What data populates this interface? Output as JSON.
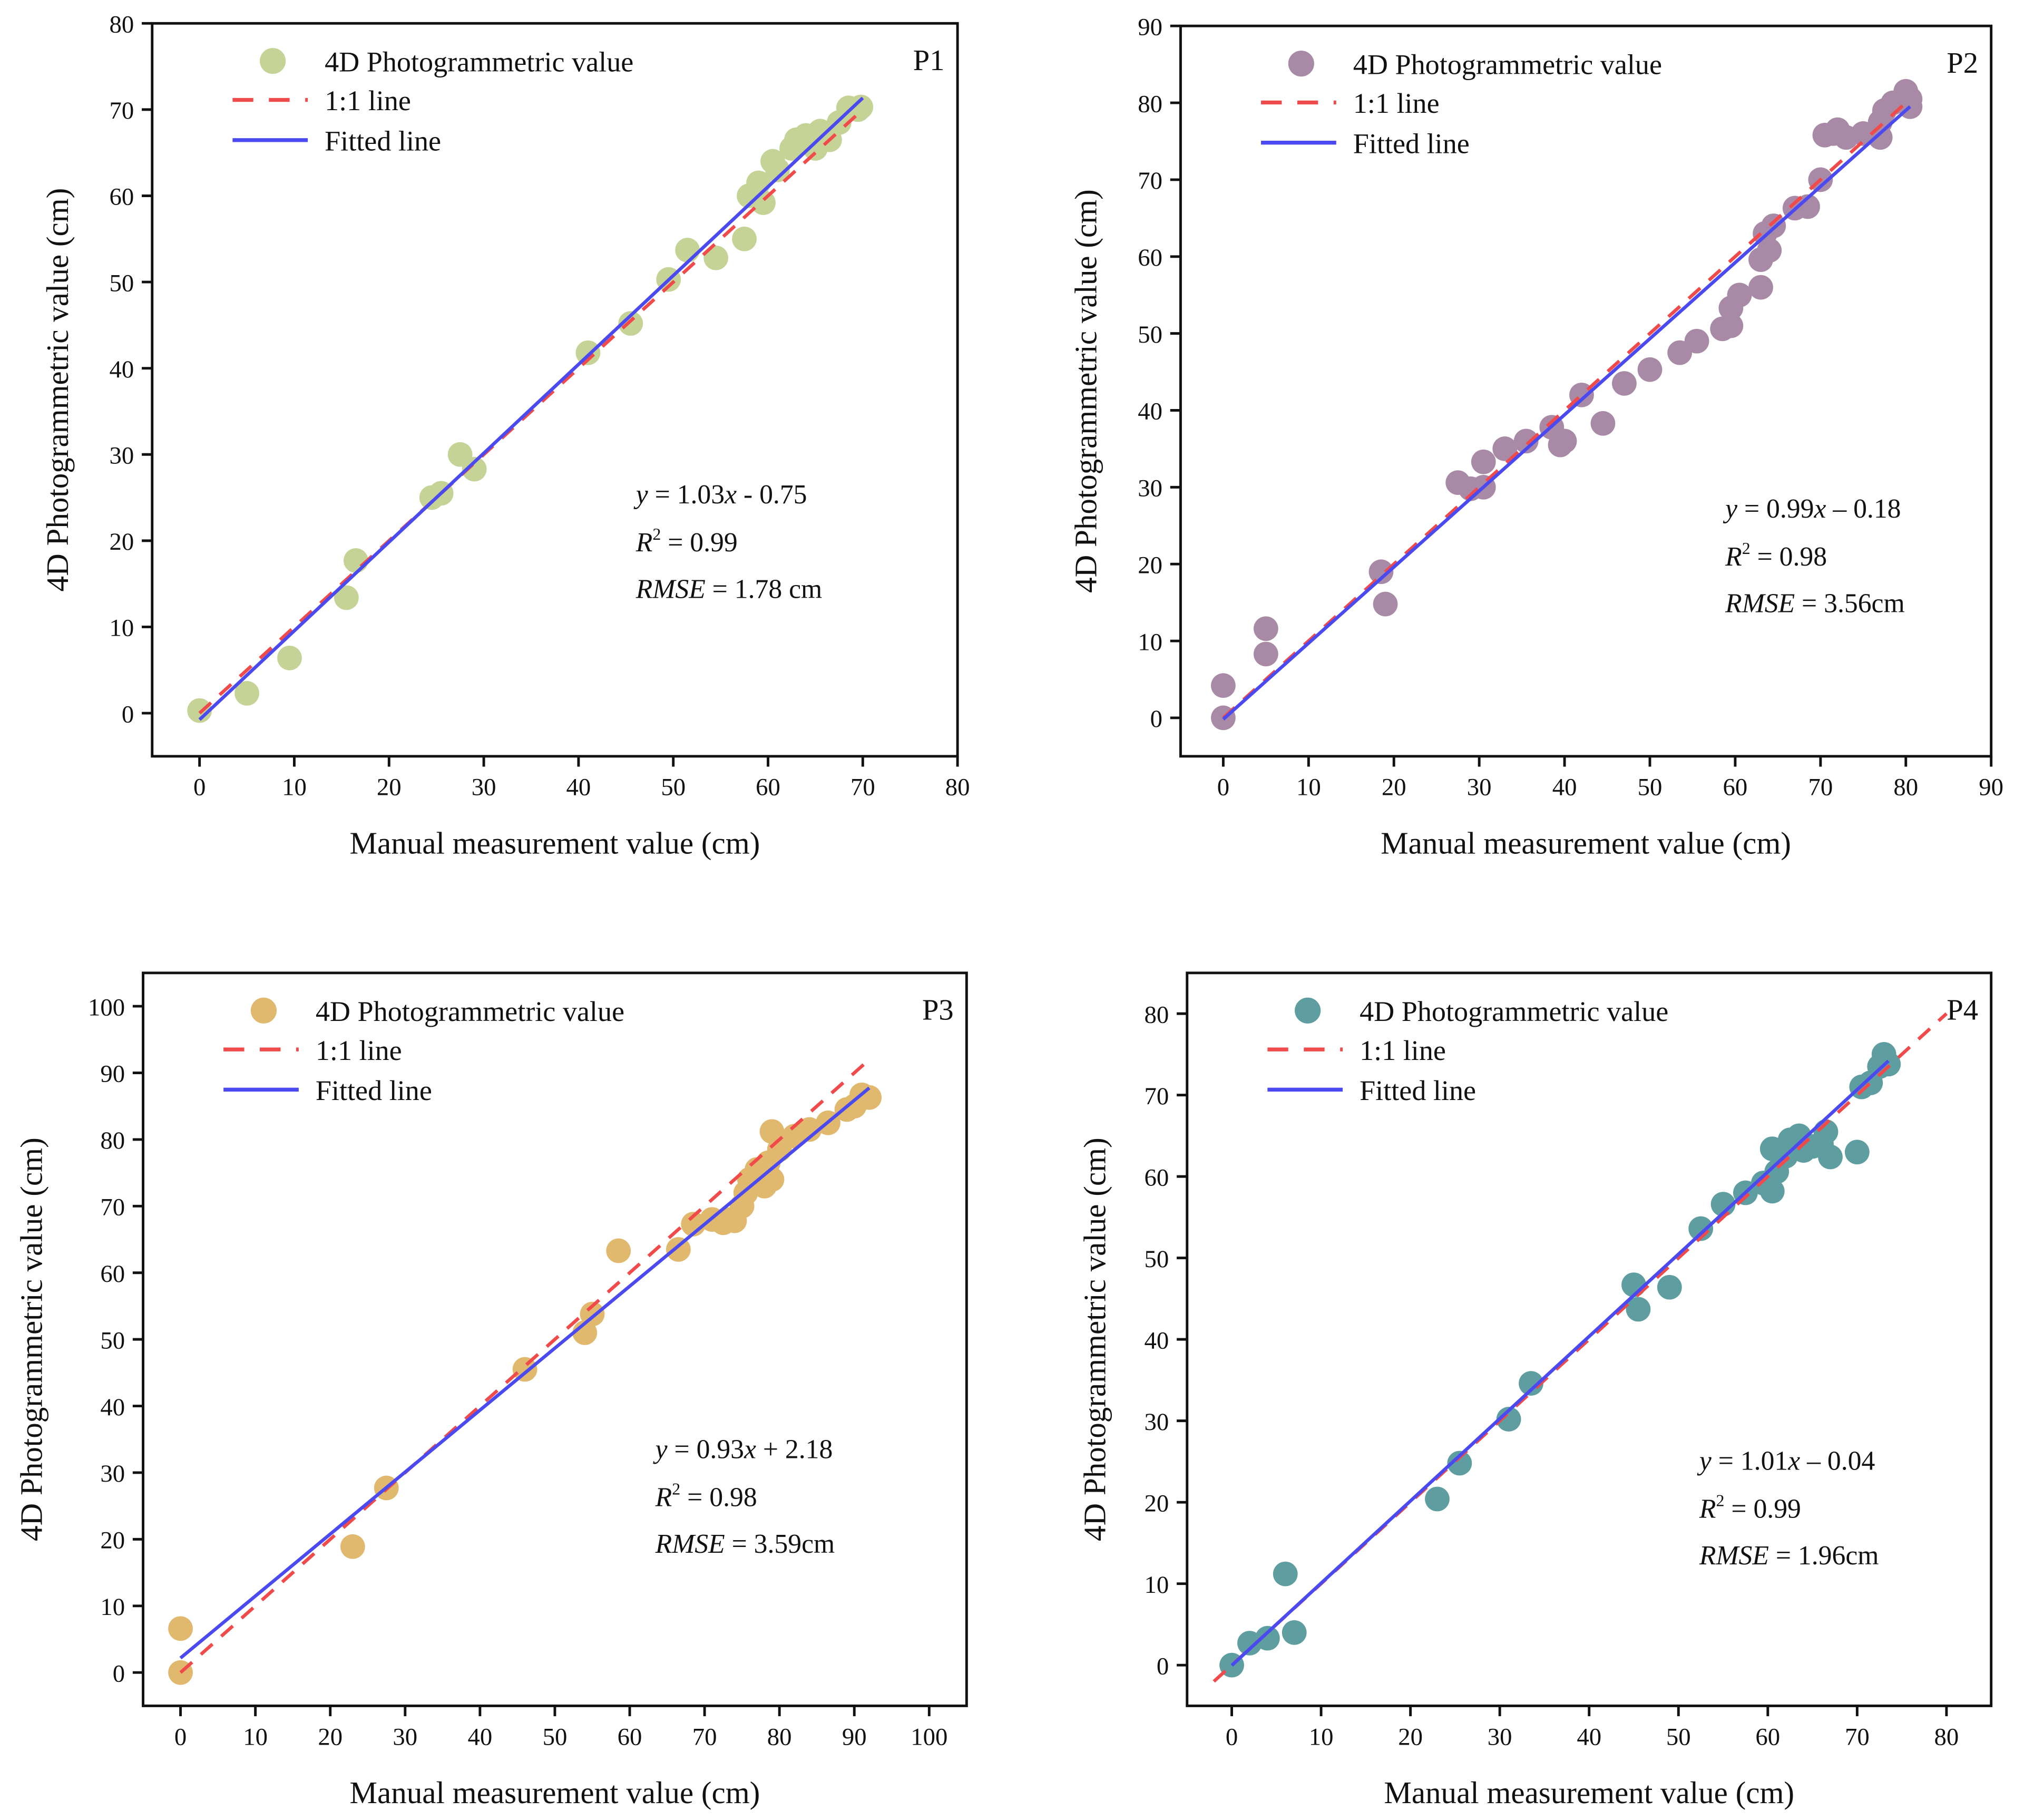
{
  "chart_data": [
    {
      "type": "scatter",
      "panel_label": "P1",
      "xlabel": "Manual measurement value (cm)",
      "ylabel": "4D Photogrammetric value (cm)",
      "xlim": [
        -5,
        80
      ],
      "ylim": [
        -5,
        80
      ],
      "xticks": [
        0,
        10,
        20,
        30,
        40,
        50,
        60,
        70,
        80
      ],
      "yticks": [
        0,
        10,
        20,
        30,
        40,
        50,
        60,
        70,
        80
      ],
      "legend": [
        "4D Photogrammetric value",
        "1:1 line",
        "Fitted line"
      ],
      "legend_position": "top-left",
      "color": "#c5d396",
      "fit": {
        "slope": 1.03,
        "intercept": -0.75,
        "x_range": [
          0,
          70
        ]
      },
      "identity_range": [
        0,
        70
      ],
      "equation": {
        "y": "y",
        "eq": " = 1.03",
        "x": "x",
        "rest": " - 0.75",
        "r2_prefix": "R",
        "r2_sup": "2",
        "r2_value": " = 0.99",
        "rmse_label": "RMSE",
        "rmse_value": " = 1.78 cm"
      },
      "points": [
        [
          0,
          0.3
        ],
        [
          5,
          2.3
        ],
        [
          9.5,
          6.4
        ],
        [
          15.5,
          13.4
        ],
        [
          16.5,
          17.7
        ],
        [
          24.5,
          25
        ],
        [
          25.5,
          25.5
        ],
        [
          27.5,
          30
        ],
        [
          29,
          28.3
        ],
        [
          41,
          41.8
        ],
        [
          45.5,
          45.2
        ],
        [
          49.5,
          50.3
        ],
        [
          51.5,
          53.7
        ],
        [
          54.5,
          52.8
        ],
        [
          57.5,
          55
        ],
        [
          58,
          60
        ],
        [
          59,
          61.5
        ],
        [
          59.5,
          59.2
        ],
        [
          60.5,
          64
        ],
        [
          61,
          63
        ],
        [
          62.5,
          65.5
        ],
        [
          63,
          66.5
        ],
        [
          64,
          67
        ],
        [
          65,
          65.5
        ],
        [
          65.5,
          67.5
        ],
        [
          66.5,
          66.5
        ],
        [
          67.5,
          68.5
        ],
        [
          68.5,
          70.2
        ],
        [
          69.5,
          70
        ],
        [
          69.8,
          70.3
        ]
      ]
    },
    {
      "type": "scatter",
      "panel_label": "P2",
      "xlabel": "Manual measurement value (cm)",
      "ylabel": "4D Photogrammetric value (cm)",
      "xlim": [
        -5,
        90
      ],
      "ylim": [
        -5,
        90
      ],
      "xticks": [
        0,
        10,
        20,
        30,
        40,
        50,
        60,
        70,
        80,
        90
      ],
      "yticks": [
        0,
        10,
        20,
        30,
        40,
        50,
        60,
        70,
        80,
        90
      ],
      "legend": [
        "4D Photogrammetric value",
        "1:1 line",
        "Fitted line"
      ],
      "legend_position": "top-left",
      "color": "#a98aa6",
      "fit": {
        "slope": 0.99,
        "intercept": -0.18,
        "x_range": [
          0,
          80.5
        ]
      },
      "identity_range": [
        0,
        80.5
      ],
      "equation": {
        "y": "y",
        "eq": " = 0.99",
        "x": "x",
        "rest": " – 0.18",
        "r2_prefix": "R",
        "r2_sup": "2",
        "r2_value": " = 0.98",
        "rmse_label": "RMSE",
        "rmse_value": " = 3.56cm"
      },
      "points": [
        [
          0,
          0
        ],
        [
          0,
          4.2
        ],
        [
          5,
          8.3
        ],
        [
          5,
          11.6
        ],
        [
          18.5,
          19
        ],
        [
          19,
          14.8
        ],
        [
          27.5,
          30.6
        ],
        [
          29,
          29.8
        ],
        [
          30.5,
          33.3
        ],
        [
          30.5,
          30
        ],
        [
          33,
          35
        ],
        [
          35.5,
          36
        ],
        [
          38.5,
          37.8
        ],
        [
          39.5,
          35.5
        ],
        [
          40,
          36
        ],
        [
          42,
          42
        ],
        [
          44.5,
          38.3
        ],
        [
          47,
          43.5
        ],
        [
          50,
          45.3
        ],
        [
          53.5,
          47.5
        ],
        [
          55.5,
          49
        ],
        [
          58.5,
          50.6
        ],
        [
          59.5,
          51
        ],
        [
          59.5,
          53.3
        ],
        [
          60.5,
          55
        ],
        [
          63,
          56
        ],
        [
          63,
          59.6
        ],
        [
          64,
          60.8
        ],
        [
          63.5,
          63
        ],
        [
          64.5,
          64
        ],
        [
          67,
          66.3
        ],
        [
          68.5,
          66.5
        ],
        [
          70,
          70
        ],
        [
          70.5,
          75.8
        ],
        [
          71.5,
          76
        ],
        [
          72,
          76.5
        ],
        [
          73,
          75.5
        ],
        [
          75,
          76
        ],
        [
          77,
          75.5
        ],
        [
          77.5,
          79
        ],
        [
          78.5,
          80
        ],
        [
          80,
          81.5
        ],
        [
          80.5,
          80.5
        ],
        [
          80.5,
          79.5
        ],
        [
          77,
          77.5
        ]
      ]
    },
    {
      "type": "scatter",
      "panel_label": "P3",
      "xlabel": "Manual measurement value (cm)",
      "ylabel": "4D Photogrammetric value (cm)",
      "xlim": [
        -5,
        105
      ],
      "ylim": [
        -5,
        105
      ],
      "xticks": [
        0,
        10,
        20,
        30,
        40,
        50,
        60,
        70,
        80,
        90,
        100
      ],
      "yticks": [
        0,
        10,
        20,
        30,
        40,
        50,
        60,
        70,
        80,
        90,
        100
      ],
      "legend": [
        "4D Photogrammetric value",
        "1:1 line",
        "Fitted line"
      ],
      "legend_position": "top-left",
      "color": "#e0b86e",
      "fit": {
        "slope": 0.93,
        "intercept": 2.18,
        "x_range": [
          0,
          92
        ]
      },
      "identity_range": [
        0,
        92
      ],
      "equation": {
        "y": "y",
        "eq": " = 0.93",
        "x": "x",
        "rest": " + 2.18",
        "r2_prefix": "R",
        "r2_sup": "2",
        "r2_value": " = 0.98",
        "rmse_label": "RMSE",
        "rmse_value": " = 3.59cm"
      },
      "points": [
        [
          0,
          0
        ],
        [
          0,
          6.6
        ],
        [
          23,
          18.9
        ],
        [
          27.5,
          27.7
        ],
        [
          46,
          45.5
        ],
        [
          54,
          51
        ],
        [
          55,
          53.8
        ],
        [
          58.5,
          63.3
        ],
        [
          66.5,
          63.5
        ],
        [
          68.5,
          67.3
        ],
        [
          71,
          68
        ],
        [
          72.5,
          67.5
        ],
        [
          73.5,
          68
        ],
        [
          74,
          67.8
        ],
        [
          75,
          70
        ],
        [
          75.5,
          72
        ],
        [
          76,
          74
        ],
        [
          77,
          75.5
        ],
        [
          78,
          73
        ],
        [
          78.5,
          76.5
        ],
        [
          79,
          74
        ],
        [
          79,
          81.2
        ],
        [
          80,
          78.5
        ],
        [
          82,
          80.5
        ],
        [
          84,
          81.5
        ],
        [
          86.5,
          82.5
        ],
        [
          89,
          84.5
        ],
        [
          90,
          85
        ],
        [
          91,
          86.7
        ],
        [
          92,
          86.3
        ]
      ]
    },
    {
      "type": "scatter",
      "panel_label": "P4",
      "xlabel": "Manual measurement value (cm)",
      "ylabel": "4D Photogrammetric value (cm)",
      "xlim": [
        -5,
        85
      ],
      "ylim": [
        -5,
        85
      ],
      "xticks": [
        0,
        10,
        20,
        30,
        40,
        50,
        60,
        70,
        80
      ],
      "yticks": [
        0,
        10,
        20,
        30,
        40,
        50,
        60,
        70,
        80
      ],
      "legend": [
        "4D Photogrammetric value",
        "1:1 line",
        "Fitted line"
      ],
      "legend_position": "top-left",
      "color": "#5f9ea0",
      "fit": {
        "slope": 1.01,
        "intercept": -0.04,
        "x_range": [
          0,
          73.5
        ]
      },
      "identity_range": [
        -2,
        80
      ],
      "equation": {
        "y": "y",
        "eq": " = 1.01",
        "x": "x",
        "rest": " – 0.04",
        "r2_prefix": "R",
        "r2_sup": "2",
        "r2_value": " = 0.99",
        "rmse_label": "RMSE",
        "rmse_value": " = 1.96cm"
      },
      "points": [
        [
          0,
          0
        ],
        [
          2,
          2.7
        ],
        [
          4,
          3.3
        ],
        [
          6,
          11.2
        ],
        [
          7,
          4
        ],
        [
          23,
          20.4
        ],
        [
          25.5,
          24.8
        ],
        [
          31,
          30.2
        ],
        [
          33.5,
          34.6
        ],
        [
          45,
          46.7
        ],
        [
          45.5,
          43.7
        ],
        [
          49,
          46.4
        ],
        [
          52.5,
          53.6
        ],
        [
          55,
          56.6
        ],
        [
          57.5,
          58
        ],
        [
          59.5,
          59.2
        ],
        [
          60.5,
          58.2
        ],
        [
          60.5,
          63.4
        ],
        [
          61,
          60.6
        ],
        [
          62,
          62.5
        ],
        [
          62.5,
          64.5
        ],
        [
          63.5,
          65
        ],
        [
          64,
          63.2
        ],
        [
          65,
          63.7
        ],
        [
          66,
          64
        ],
        [
          66.5,
          65.5
        ],
        [
          67,
          62.4
        ],
        [
          70,
          63
        ],
        [
          70.5,
          71
        ],
        [
          71.5,
          71.5
        ],
        [
          72.5,
          73.5
        ],
        [
          73,
          75
        ],
        [
          73.5,
          73.8
        ]
      ]
    }
  ],
  "styles": {
    "identity_color": "#f04a4a",
    "fit_color": "#4a4af0"
  }
}
